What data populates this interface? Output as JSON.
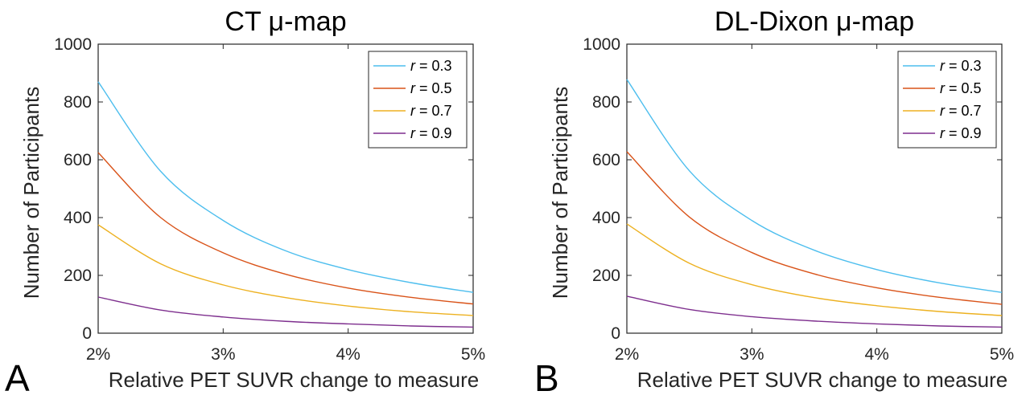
{
  "chart_data": [
    {
      "panel_letter": "A",
      "type": "line",
      "title": "CT μ-map",
      "xlabel": "Relative PET SUVR change to measure",
      "ylabel": "Number of Participants",
      "xlim": [
        2,
        5
      ],
      "ylim": [
        0,
        1000
      ],
      "xticks": [
        "2%",
        "3%",
        "4%",
        "5%"
      ],
      "yticks": [
        "0",
        "200",
        "400",
        "600",
        "800",
        "1000"
      ],
      "legend_position": "top-right",
      "series": [
        {
          "name": "r = 0.3",
          "color": "#4DBEEE",
          "x": [
            2.0,
            2.5,
            3.0,
            3.5,
            4.0,
            4.5,
            5.0
          ],
          "y": [
            870,
            560,
            390,
            285,
            220,
            175,
            141
          ]
        },
        {
          "name": "r = 0.5",
          "color": "#D95319",
          "x": [
            2.0,
            2.5,
            3.0,
            3.5,
            4.0,
            4.5,
            5.0
          ],
          "y": [
            625,
            400,
            278,
            204,
            156,
            124,
            101
          ]
        },
        {
          "name": "r = 0.7",
          "color": "#EDB120",
          "x": [
            2.0,
            2.5,
            3.0,
            3.5,
            4.0,
            4.5,
            5.0
          ],
          "y": [
            375,
            240,
            167,
            123,
            94,
            74,
            61
          ]
        },
        {
          "name": "r = 0.9",
          "color": "#7E2F8E",
          "x": [
            2.0,
            2.5,
            3.0,
            3.5,
            4.0,
            4.5,
            5.0
          ],
          "y": [
            125,
            80,
            56,
            41,
            32,
            25,
            21
          ]
        }
      ]
    },
    {
      "panel_letter": "B",
      "type": "line",
      "title": "DL-Dixon μ-map",
      "xlabel": "Relative PET SUVR change to measure",
      "ylabel": "Number of Participants",
      "xlim": [
        2,
        5
      ],
      "ylim": [
        0,
        1000
      ],
      "xticks": [
        "2%",
        "3%",
        "4%",
        "5%"
      ],
      "yticks": [
        "0",
        "200",
        "400",
        "600",
        "800",
        "1000"
      ],
      "legend_position": "top-right",
      "series": [
        {
          "name": "r = 0.3",
          "color": "#4DBEEE",
          "x": [
            2.0,
            2.5,
            3.0,
            3.5,
            4.0,
            4.5,
            5.0
          ],
          "y": [
            878,
            562,
            390,
            287,
            220,
            174,
            141
          ]
        },
        {
          "name": "r = 0.5",
          "color": "#D95319",
          "x": [
            2.0,
            2.5,
            3.0,
            3.5,
            4.0,
            4.5,
            5.0
          ],
          "y": [
            628,
            402,
            279,
            205,
            157,
            124,
            100
          ]
        },
        {
          "name": "r = 0.7",
          "color": "#EDB120",
          "x": [
            2.0,
            2.5,
            3.0,
            3.5,
            4.0,
            4.5,
            5.0
          ],
          "y": [
            378,
            242,
            168,
            123,
            95,
            75,
            61
          ]
        },
        {
          "name": "r = 0.9",
          "color": "#7E2F8E",
          "x": [
            2.0,
            2.5,
            3.0,
            3.5,
            4.0,
            4.5,
            5.0
          ],
          "y": [
            128,
            82,
            57,
            42,
            32,
            25,
            21
          ]
        }
      ]
    }
  ]
}
